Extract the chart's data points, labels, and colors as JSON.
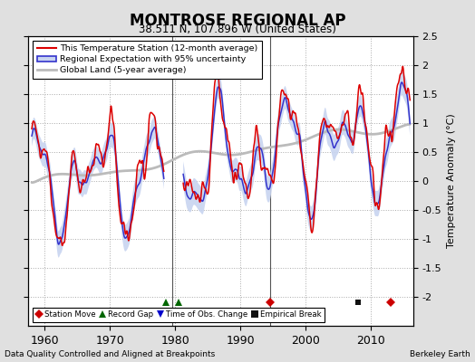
{
  "title": "MONTROSE REGIONAL AP",
  "subtitle": "38.511 N, 107.896 W (United States)",
  "ylabel": "Temperature Anomaly (°C)",
  "xlabel_note": "Data Quality Controlled and Aligned at Breakpoints",
  "credit": "Berkeley Earth",
  "xlim": [
    1957.5,
    2016.5
  ],
  "ylim": [
    -2.5,
    2.5
  ],
  "yticks": [
    -2.0,
    -1.5,
    -1.0,
    -0.5,
    0.0,
    0.5,
    1.0,
    1.5,
    2.0,
    2.5
  ],
  "ytick_labels_right": [
    "-2",
    "-1.5",
    "-1",
    "-0.5",
    "0",
    "0.5",
    "1",
    "1.5",
    "2",
    "2.5"
  ],
  "xticks": [
    1960,
    1970,
    1980,
    1990,
    2000,
    2010
  ],
  "bg_color": "#e0e0e0",
  "plot_bg_color": "#ffffff",
  "vline_years": [
    1979.5,
    1994.5
  ],
  "station_moves": [
    1994.5,
    2013.0
  ],
  "record_gaps": [
    1978.5,
    1980.5
  ],
  "time_obs_changes": [],
  "empirical_breaks": [
    2008.0
  ],
  "seed": 17,
  "gap_start": 1978.3,
  "gap_end": 1981.2
}
